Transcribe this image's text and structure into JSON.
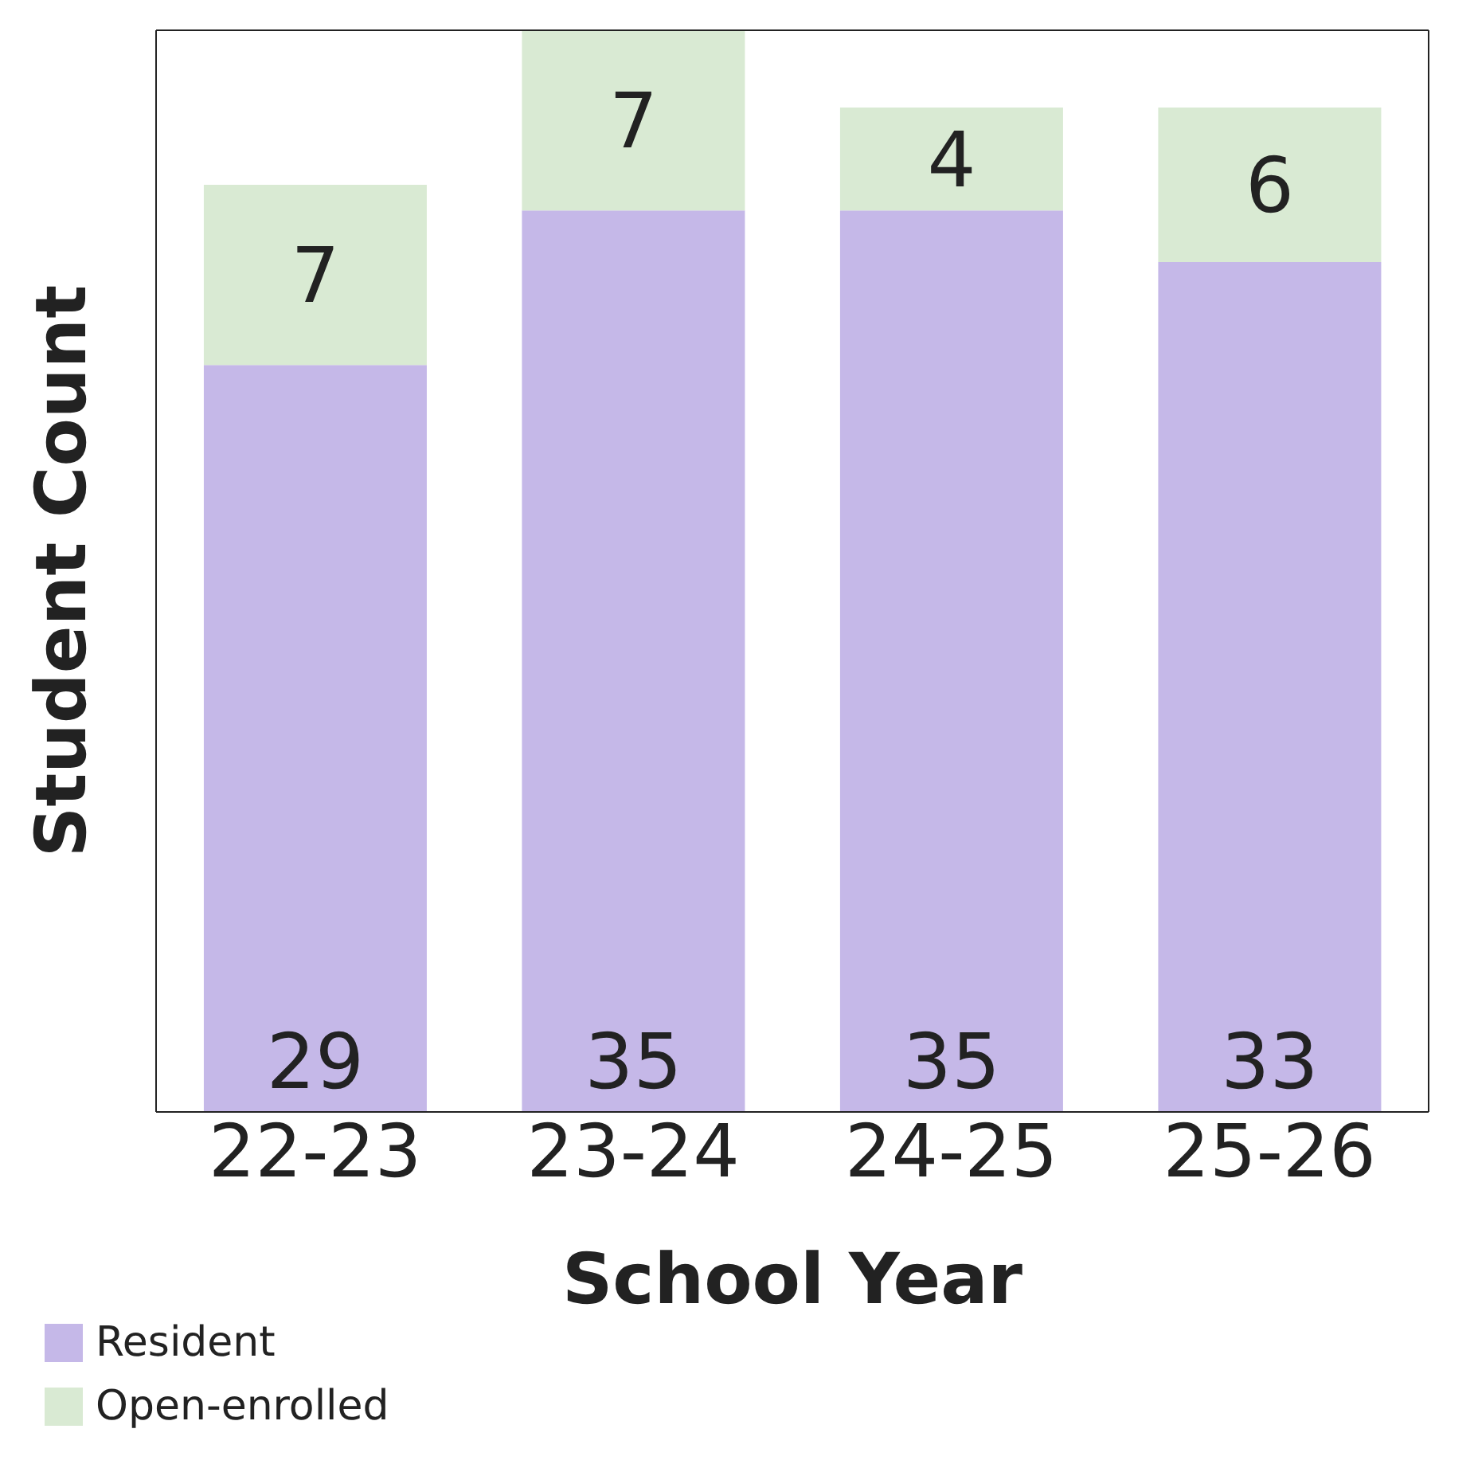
{
  "chart_data": {
    "type": "bar",
    "stacked": true,
    "xlabel": "School Year",
    "ylabel": "Student Count",
    "categories": [
      "22-23",
      "23-24",
      "24-25",
      "25-26"
    ],
    "series": [
      {
        "name": "Resident",
        "color": "#c5b8e8",
        "values": [
          29,
          35,
          35,
          33
        ]
      },
      {
        "name": "Open-enrolled",
        "color": "#d9ead3",
        "values": [
          7,
          7,
          4,
          6
        ]
      }
    ],
    "data_labels": true,
    "grid": false,
    "legend": "bottom left"
  }
}
